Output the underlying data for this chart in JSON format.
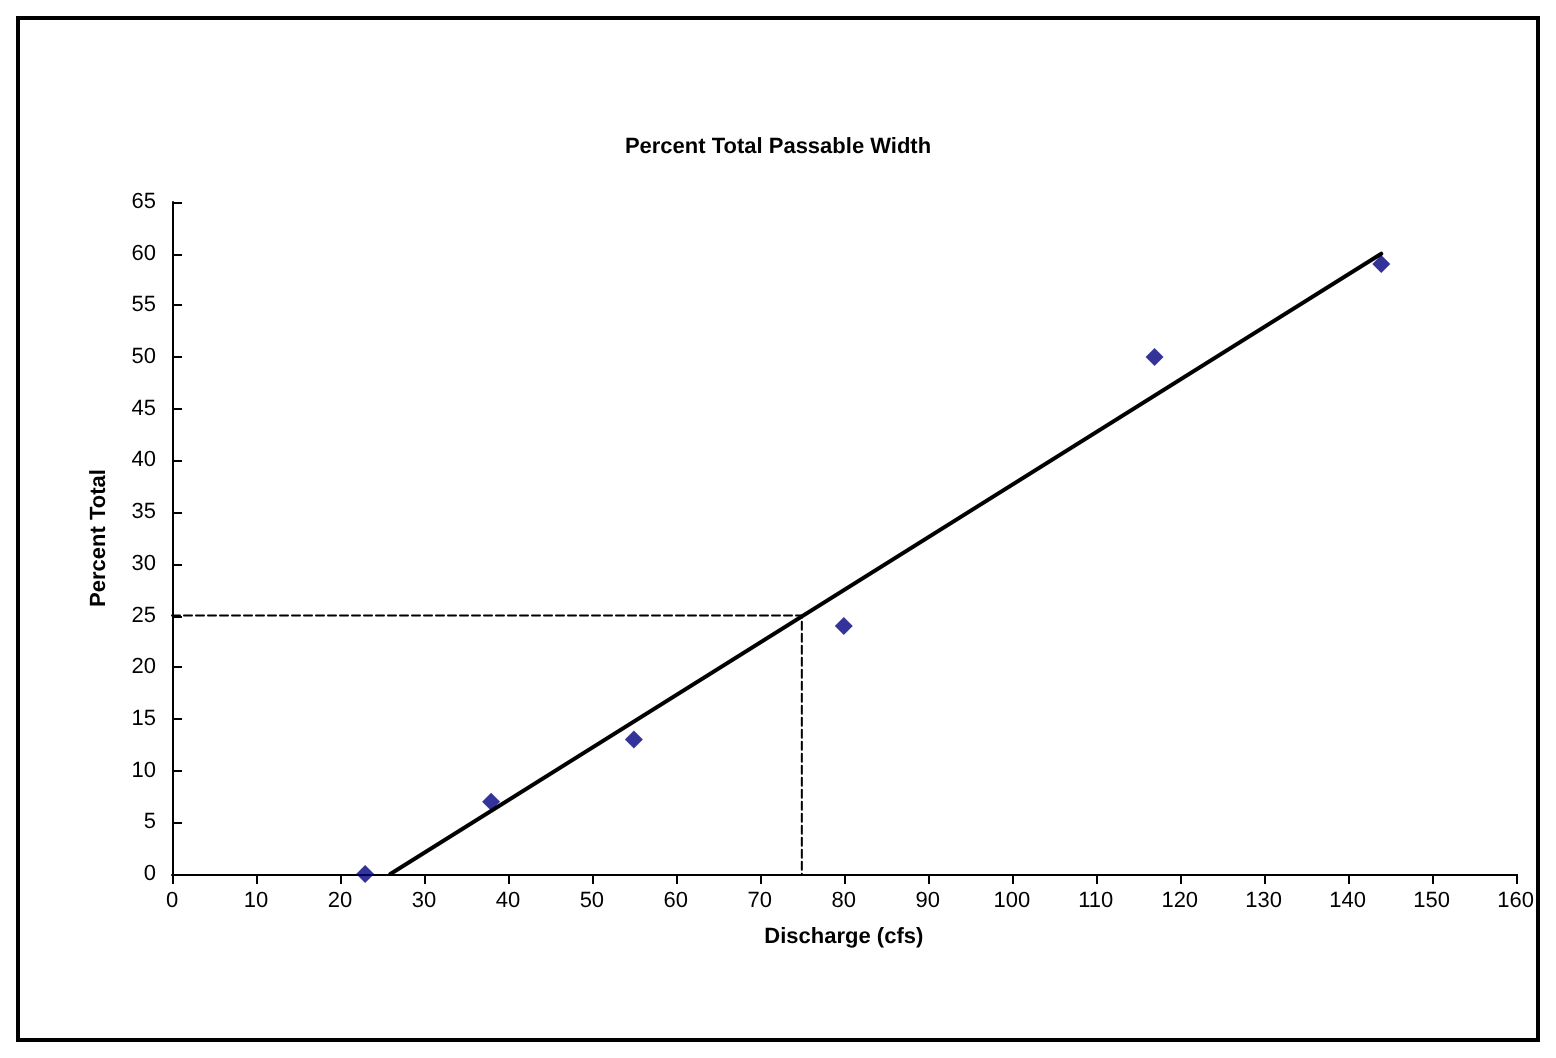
{
  "chart_data": {
    "type": "scatter",
    "title": "Percent Total Passable Width",
    "xlabel": "Discharge (cfs)",
    "ylabel": "Percent Total",
    "xlim": [
      0,
      160
    ],
    "xticks": [
      0,
      10,
      20,
      30,
      40,
      50,
      60,
      70,
      80,
      90,
      100,
      110,
      120,
      130,
      140,
      150,
      160
    ],
    "ylim": [
      0,
      65
    ],
    "yticks": [
      0,
      5,
      10,
      15,
      20,
      25,
      30,
      35,
      40,
      45,
      50,
      55,
      60,
      65
    ],
    "grid": false,
    "marker": "diamond",
    "series": [
      {
        "color": "#000080",
        "x": [
          23,
          38,
          55,
          80,
          117,
          144
        ],
        "values": [
          0,
          7,
          13,
          24,
          50,
          59
        ]
      },
      {
        "type": "line",
        "color": "#000000",
        "x": [
          26,
          144
        ],
        "values": [
          0,
          60
        ],
        "marker": "none",
        "line_style": "solid"
      },
      {
        "type": "line",
        "color": "#000000",
        "x": [
          0,
          75,
          75
        ],
        "values": [
          25,
          25,
          0
        ],
        "marker": "none",
        "line_style": "dashed"
      }
    ]
  }
}
